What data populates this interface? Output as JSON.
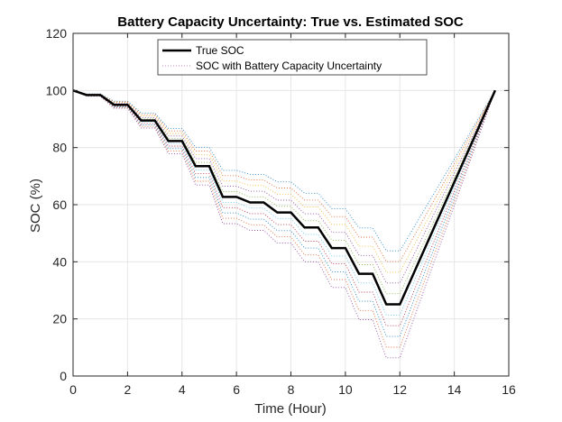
{
  "chart_data": {
    "type": "line",
    "title": "Battery Capacity Uncertainty: True vs. Estimated SOC",
    "xlabel": "Time (Hour)",
    "ylabel": "SOC (%)",
    "xlim": [
      0,
      16
    ],
    "ylim": [
      0,
      120
    ],
    "xticks": [
      "0",
      "2",
      "4",
      "6",
      "8",
      "10",
      "12",
      "14",
      "16"
    ],
    "yticks": [
      "0",
      "20",
      "40",
      "60",
      "80",
      "100",
      "120"
    ],
    "grid": true,
    "legend_position": "top-center",
    "true_soc": {
      "name": "True SOC",
      "color": "#000000",
      "x": [
        0,
        0.5,
        1.0,
        1.5,
        2.0,
        2.5,
        3.0,
        3.5,
        4.0,
        4.5,
        5.0,
        5.5,
        6.0,
        6.5,
        7.0,
        7.5,
        8.0,
        8.5,
        9.0,
        9.5,
        10.0,
        10.5,
        11.0,
        11.5,
        12.0,
        15.5
      ],
      "y": [
        100,
        98.4,
        98.4,
        95.0,
        95.0,
        89.5,
        89.5,
        82.3,
        82.3,
        73.5,
        73.5,
        62.7,
        62.7,
        60.8,
        60.8,
        57.3,
        57.3,
        52.0,
        52.0,
        44.8,
        44.8,
        35.8,
        35.8,
        25.1,
        25.1,
        100
      ]
    },
    "uncertainty_band": {
      "name": "SOC with Battery Capacity Uncertainty",
      "style": "dotted",
      "scale_factors": [
        0.75,
        0.8,
        0.85,
        0.9,
        0.95,
        1.05,
        1.1,
        1.15,
        1.2,
        1.25
      ],
      "colors": [
        "#0072bd",
        "#d95319",
        "#edb120",
        "#7e2f8e",
        "#77ac30",
        "#4dbeee",
        "#a2142f",
        "#0072bd",
        "#d95319",
        "#7e2f8e"
      ]
    }
  }
}
